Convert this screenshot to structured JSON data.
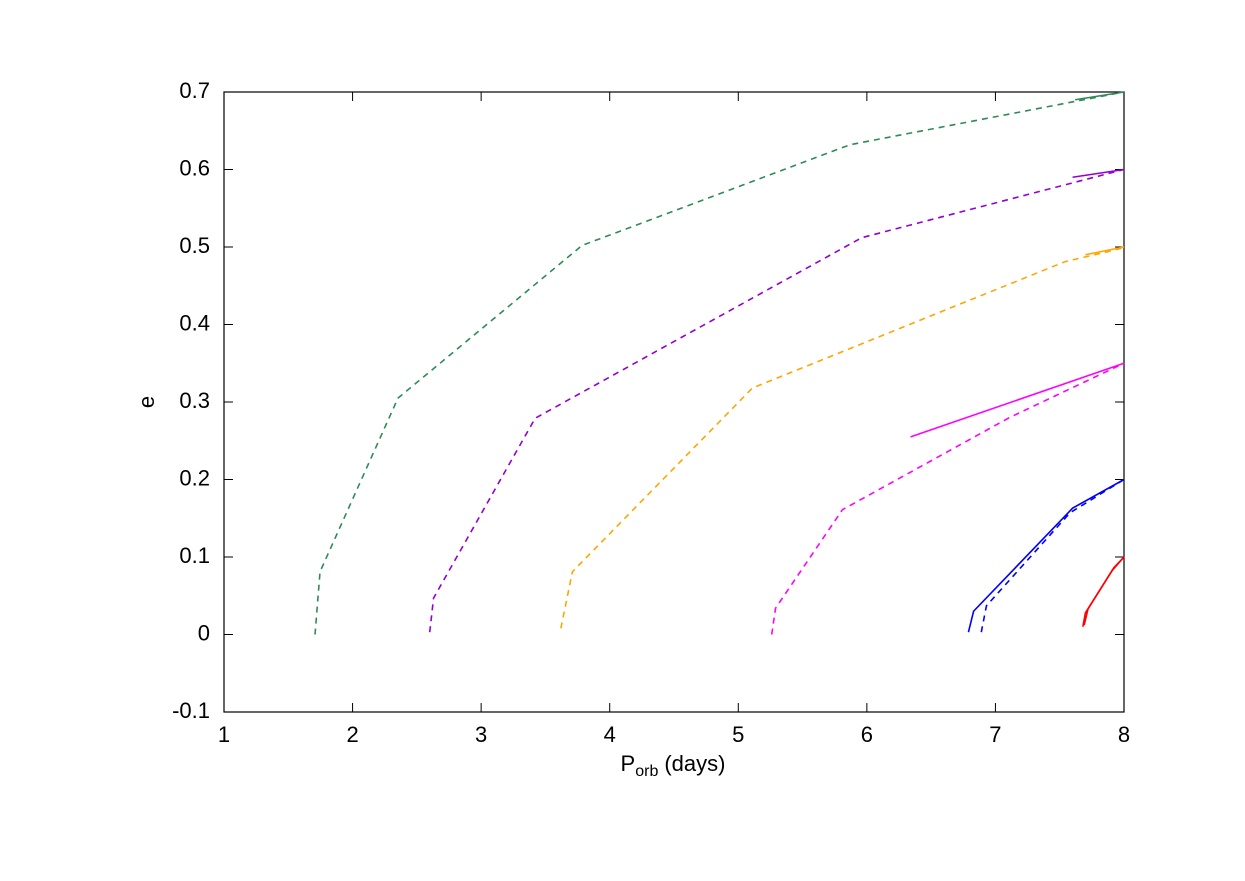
{
  "chart_data": {
    "type": "line",
    "xlabel": {
      "main": "P",
      "sub": "orb",
      "rest": "(days)"
    },
    "ylabel": "e",
    "xlim": [
      1,
      8
    ],
    "xticks": [
      1,
      2,
      3,
      4,
      5,
      6,
      7,
      8
    ],
    "ylim": [
      -0.1,
      0.7
    ],
    "yticks": [
      -0.1,
      0,
      0.1,
      0.2,
      0.3,
      0.4,
      0.5,
      0.6,
      0.7
    ],
    "series": [
      {
        "color": "#2e8b57",
        "dashed": true,
        "x": [
          1.708,
          1.747,
          2.353,
          3.785,
          5.87,
          8
        ],
        "values": [
          0.0,
          0.081,
          0.305,
          0.502,
          0.632,
          0.7
        ]
      },
      {
        "color": "#2e8b57",
        "dashed": false,
        "x": [
          7.62,
          8
        ],
        "values": [
          0.69,
          0.7
        ]
      },
      {
        "color": "#9400d3",
        "dashed": true,
        "x": [
          2.6,
          2.63,
          3.42,
          5.96,
          8
        ],
        "values": [
          0.003,
          0.047,
          0.279,
          0.512,
          0.6
        ]
      },
      {
        "color": "#9400d3",
        "dashed": false,
        "x": [
          7.6,
          8
        ],
        "values": [
          0.59,
          0.6
        ]
      },
      {
        "color": "#ffa500",
        "dashed": true,
        "x": [
          3.62,
          3.71,
          5.11,
          7.54,
          8
        ],
        "values": [
          0.008,
          0.081,
          0.318,
          0.481,
          0.499
        ]
      },
      {
        "color": "#ffa500",
        "dashed": false,
        "x": [
          7.7,
          8
        ],
        "values": [
          0.49,
          0.5
        ]
      },
      {
        "color": "#ff00ff",
        "dashed": true,
        "x": [
          5.26,
          5.29,
          5.81,
          7.11,
          8
        ],
        "values": [
          0.0,
          0.034,
          0.161,
          0.28,
          0.35
        ]
      },
      {
        "color": "#ff00ff",
        "dashed": false,
        "x": [
          6.34,
          8
        ],
        "values": [
          0.255,
          0.35
        ]
      },
      {
        "color": "#0000ff",
        "dashed": false,
        "x": [
          6.79,
          6.83,
          7.6,
          8
        ],
        "values": [
          0.003,
          0.03,
          0.163,
          0.2
        ]
      },
      {
        "color": "#0000ff",
        "dashed": true,
        "x": [
          6.89,
          6.93,
          7.58,
          8
        ],
        "values": [
          0.003,
          0.037,
          0.157,
          0.2
        ]
      },
      {
        "color": "#ff0000",
        "dashed": false,
        "x": [
          7.68,
          7.7,
          7.91,
          8
        ],
        "values": [
          0.01,
          0.028,
          0.083,
          0.1
        ]
      },
      {
        "color": "#ff0000",
        "dashed": false,
        "x": [
          7.69,
          7.72,
          7.92,
          8
        ],
        "values": [
          0.012,
          0.033,
          0.086,
          0.1
        ]
      }
    ]
  }
}
